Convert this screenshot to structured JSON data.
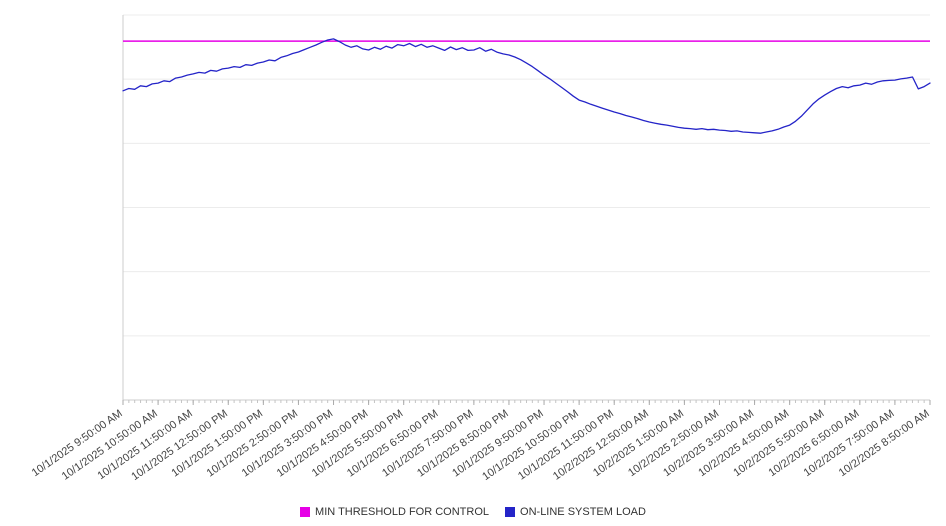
{
  "chart_data": {
    "type": "line",
    "title": "",
    "xlabel": "",
    "ylabel": "",
    "ylim": [
      0,
      100
    ],
    "grid_divisions": 6,
    "grid": true,
    "legend_position": "bottom-center",
    "grid_color": "#ececec",
    "axis_color": "#cccccc",
    "tick_color": "#aaaaaa",
    "label_color": "#444444",
    "y_tick_labels": [],
    "x_tick_labels": [
      "10/1/2025 9:50:00 AM",
      "10/1/2025 10:50:00 AM",
      "10/1/2025 11:50:00 AM",
      "10/1/2025 12:50:00 PM",
      "10/1/2025 1:50:00 PM",
      "10/1/2025 2:50:00 PM",
      "10/1/2025 3:50:00 PM",
      "10/1/2025 4:50:00 PM",
      "10/1/2025 5:50:00 PM",
      "10/1/2025 6:50:00 PM",
      "10/1/2025 7:50:00 PM",
      "10/1/2025 8:50:00 PM",
      "10/1/2025 9:50:00 PM",
      "10/1/2025 10:50:00 PM",
      "10/1/2025 11:50:00 PM",
      "10/2/2025 12:50:00 AM",
      "10/2/2025 1:50:00 AM",
      "10/2/2025 2:50:00 AM",
      "10/2/2025 3:50:00 AM",
      "10/2/2025 4:50:00 AM",
      "10/2/2025 5:50:00 AM",
      "10/2/2025 6:50:00 AM",
      "10/2/2025 7:50:00 AM",
      "10/2/2025 8:50:00 AM"
    ],
    "points_per_hour": 6,
    "series": [
      {
        "name": "MIN THRESHOLD FOR CONTROL",
        "color": "#e600e6",
        "kind": "threshold",
        "value": 93.2
      },
      {
        "name": "ON-LINE SYSTEM LOAD",
        "color": "#2424c8",
        "kind": "line",
        "values": [
          80.3,
          80.9,
          80.7,
          81.6,
          81.4,
          82.1,
          82.3,
          82.9,
          82.7,
          83.6,
          83.9,
          84.4,
          84.7,
          85.1,
          84.9,
          85.6,
          85.4,
          86.0,
          86.2,
          86.6,
          86.4,
          87.1,
          86.9,
          87.5,
          87.8,
          88.3,
          88.1,
          89.0,
          89.4,
          90.0,
          90.4,
          91.0,
          91.6,
          92.2,
          92.9,
          93.5,
          93.8,
          93.1,
          92.2,
          91.6,
          92.0,
          91.2,
          90.9,
          91.6,
          91.1,
          91.9,
          91.4,
          92.3,
          92.0,
          92.6,
          91.8,
          92.4,
          91.6,
          92.0,
          91.4,
          90.8,
          91.7,
          91.0,
          91.5,
          90.8,
          90.9,
          91.5,
          90.6,
          91.1,
          90.3,
          89.9,
          89.6,
          89.1,
          88.4,
          87.5,
          86.6,
          85.5,
          84.4,
          83.4,
          82.3,
          81.2,
          80.1,
          78.9,
          77.9,
          77.4,
          76.8,
          76.3,
          75.8,
          75.3,
          74.8,
          74.4,
          73.9,
          73.5,
          73.1,
          72.6,
          72.2,
          71.9,
          71.6,
          71.4,
          71.1,
          70.8,
          70.6,
          70.5,
          70.3,
          70.5,
          70.2,
          70.3,
          70.1,
          70.0,
          69.8,
          69.9,
          69.6,
          69.5,
          69.4,
          69.3,
          69.6,
          69.9,
          70.3,
          70.9,
          71.4,
          72.4,
          73.7,
          75.3,
          76.9,
          78.2,
          79.2,
          80.1,
          80.9,
          81.4,
          81.1,
          81.6,
          81.8,
          82.3,
          82.0,
          82.6,
          82.9,
          83.0,
          83.1,
          83.4,
          83.6,
          83.9,
          80.8,
          81.4,
          82.3
        ]
      }
    ]
  }
}
